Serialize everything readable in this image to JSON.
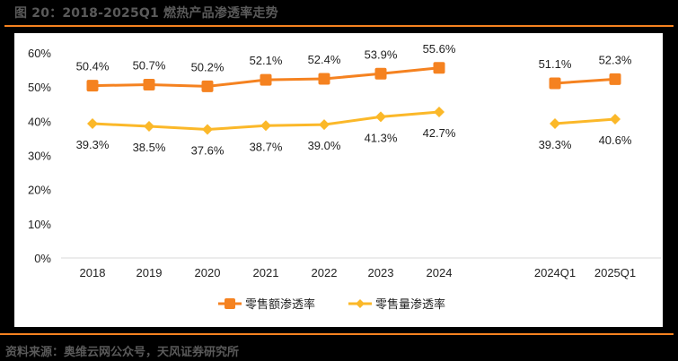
{
  "header": {
    "title": "图 20：2018-2025Q1 燃热产品渗透率走势"
  },
  "footer": {
    "source": "资料来源：奥维云网公众号，天风证券研究所"
  },
  "colors": {
    "accent_rule": "#F58220",
    "series_amount": "#F58220",
    "series_volume": "#FBB829"
  },
  "chart_data": {
    "type": "line",
    "title": "2018-2025Q1 燃热产品渗透率走势",
    "xlabel": "",
    "ylabel": "",
    "ylim": [
      0,
      60
    ],
    "yticks": [
      "0%",
      "10%",
      "20%",
      "30%",
      "40%",
      "50%",
      "60%"
    ],
    "grid": false,
    "legend_position": "bottom",
    "categories": [
      "2018",
      "2019",
      "2020",
      "2021",
      "2022",
      "2023",
      "2024",
      "",
      "2024Q1",
      "2025Q1"
    ],
    "segments": [
      [
        0,
        6
      ],
      [
        8,
        9
      ]
    ],
    "series": [
      {
        "name": "零售额渗透率",
        "marker": "square",
        "values": [
          50.4,
          50.7,
          50.2,
          52.1,
          52.4,
          53.9,
          55.6,
          null,
          51.1,
          52.3
        ],
        "labels": [
          "50.4%",
          "50.7%",
          "50.2%",
          "52.1%",
          "52.4%",
          "53.9%",
          "55.6%",
          "",
          "51.1%",
          "52.3%"
        ]
      },
      {
        "name": "零售量渗透率",
        "marker": "diamond",
        "values": [
          39.3,
          38.5,
          37.6,
          38.7,
          39.0,
          41.3,
          42.7,
          null,
          39.3,
          40.6
        ],
        "labels": [
          "39.3%",
          "38.5%",
          "37.6%",
          "38.7%",
          "39.0%",
          "41.3%",
          "42.7%",
          "",
          "39.3%",
          "40.6%"
        ]
      }
    ]
  }
}
